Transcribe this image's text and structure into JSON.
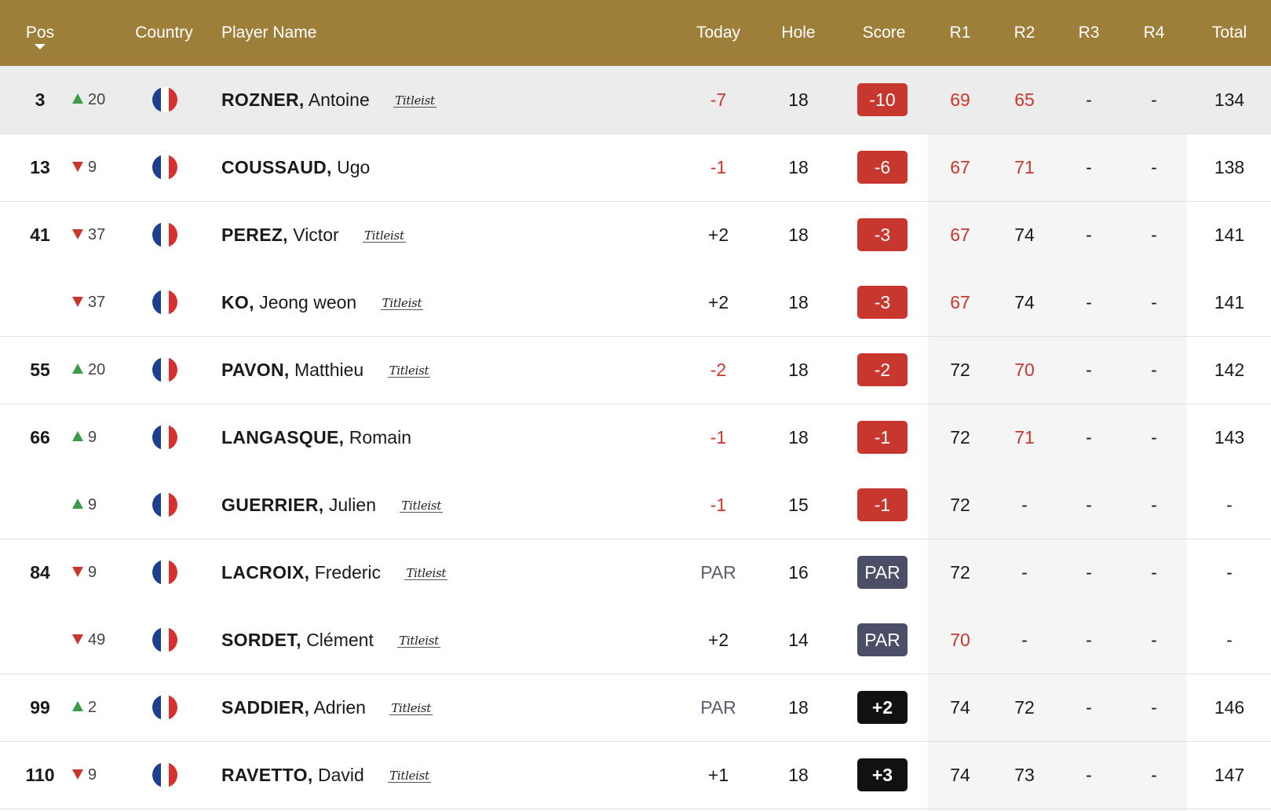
{
  "header": {
    "pos": "Pos",
    "country": "Country",
    "player_name": "Player Name",
    "today": "Today",
    "hole": "Hole",
    "score": "Score",
    "r1": "R1",
    "r2": "R2",
    "r3": "R3",
    "r4": "R4",
    "total": "Total"
  },
  "colors": {
    "header_bg": "#9e7f3a",
    "under_par": "#c8372d",
    "par_badge": "#4b4e66",
    "over_par_badge": "#111111",
    "move_up": "#3c9a4a",
    "move_down": "#c8372d"
  },
  "rows": [
    {
      "pos": "3",
      "move_dir": "up",
      "move": "20",
      "country": "France",
      "last": "ROZNER,",
      "first": "Antoine",
      "sponsor": "Titleist",
      "today": "-7",
      "hole": "18",
      "score": "-10",
      "score_type": "under",
      "r1": "69",
      "r2": "65",
      "r3": "-",
      "r4": "-",
      "total": "134",
      "highlight": true
    },
    {
      "pos": "13",
      "move_dir": "down",
      "move": "9",
      "country": "France",
      "last": "COUSSAUD,",
      "first": "Ugo",
      "sponsor": "",
      "today": "-1",
      "hole": "18",
      "score": "-6",
      "score_type": "under",
      "r1": "67",
      "r2": "71",
      "r3": "-",
      "r4": "-",
      "total": "138"
    },
    {
      "pos": "41",
      "move_dir": "down",
      "move": "37",
      "country": "France",
      "last": "PEREZ,",
      "first": "Victor",
      "sponsor": "Titleist",
      "today": "+2",
      "hole": "18",
      "score": "-3",
      "score_type": "under",
      "r1": "67",
      "r2": "74",
      "r3": "-",
      "r4": "-",
      "total": "141"
    },
    {
      "pos": "",
      "move_dir": "down",
      "move": "37",
      "country": "France",
      "last": "KO,",
      "first": "Jeong weon",
      "sponsor": "Titleist",
      "today": "+2",
      "hole": "18",
      "score": "-3",
      "score_type": "under",
      "r1": "67",
      "r2": "74",
      "r3": "-",
      "r4": "-",
      "total": "141"
    },
    {
      "pos": "55",
      "move_dir": "up",
      "move": "20",
      "country": "France",
      "last": "PAVON,",
      "first": "Matthieu",
      "sponsor": "Titleist",
      "today": "-2",
      "hole": "18",
      "score": "-2",
      "score_type": "under",
      "r1": "72",
      "r2": "70",
      "r3": "-",
      "r4": "-",
      "total": "142"
    },
    {
      "pos": "66",
      "move_dir": "up",
      "move": "9",
      "country": "France",
      "last": "LANGASQUE,",
      "first": "Romain",
      "sponsor": "",
      "today": "-1",
      "hole": "18",
      "score": "-1",
      "score_type": "under",
      "r1": "72",
      "r2": "71",
      "r3": "-",
      "r4": "-",
      "total": "143"
    },
    {
      "pos": "",
      "move_dir": "up",
      "move": "9",
      "country": "France",
      "last": "GUERRIER,",
      "first": "Julien",
      "sponsor": "Titleist",
      "today": "-1",
      "hole": "15",
      "score": "-1",
      "score_type": "under",
      "r1": "72",
      "r2": "-",
      "r3": "-",
      "r4": "-",
      "total": "-"
    },
    {
      "pos": "84",
      "move_dir": "down",
      "move": "9",
      "country": "France",
      "last": "LACROIX,",
      "first": "Frederic",
      "sponsor": "Titleist",
      "today": "PAR",
      "hole": "16",
      "score": "PAR",
      "score_type": "par",
      "r1": "72",
      "r2": "-",
      "r3": "-",
      "r4": "-",
      "total": "-"
    },
    {
      "pos": "",
      "move_dir": "down",
      "move": "49",
      "country": "France",
      "last": "SORDET,",
      "first": "Clément",
      "sponsor": "Titleist",
      "today": "+2",
      "hole": "14",
      "score": "PAR",
      "score_type": "par",
      "r1": "70",
      "r2": "-",
      "r3": "-",
      "r4": "-",
      "total": "-"
    },
    {
      "pos": "99",
      "move_dir": "up",
      "move": "2",
      "country": "France",
      "last": "SADDIER,",
      "first": "Adrien",
      "sponsor": "Titleist",
      "today": "PAR",
      "hole": "18",
      "score": "+2",
      "score_type": "over",
      "r1": "74",
      "r2": "72",
      "r3": "-",
      "r4": "-",
      "total": "146"
    },
    {
      "pos": "110",
      "move_dir": "down",
      "move": "9",
      "country": "France",
      "last": "RAVETTO,",
      "first": "David",
      "sponsor": "Titleist",
      "today": "+1",
      "hole": "18",
      "score": "+3",
      "score_type": "over",
      "r1": "74",
      "r2": "73",
      "r3": "-",
      "r4": "-",
      "total": "147"
    }
  ]
}
